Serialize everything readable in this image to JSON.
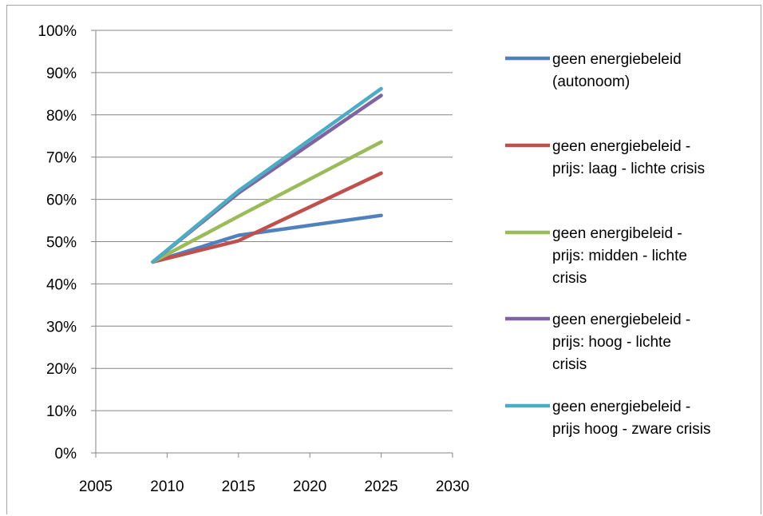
{
  "chart_data": {
    "type": "line",
    "title": "",
    "xlabel": "",
    "ylabel": "",
    "xlim": [
      2005,
      2030
    ],
    "ylim": [
      0,
      100
    ],
    "x_ticks": [
      "2005",
      "2010",
      "2015",
      "2020",
      "2025",
      "2030"
    ],
    "y_ticks": [
      "0%",
      "10%",
      "20%",
      "30%",
      "40%",
      "50%",
      "60%",
      "70%",
      "80%",
      "90%",
      "100%"
    ],
    "grid": "horizontal",
    "legend_position": "right",
    "series": [
      {
        "name": "geen energiebeleid (autonoom)",
        "legend_lines": [
          "geen energiebeleid",
          "(autonoom)"
        ],
        "color": "#4f81bd",
        "x": [
          2009,
          2015,
          2025
        ],
        "y": [
          45.2,
          51.5,
          56.2
        ]
      },
      {
        "name": "geen energiebeleid - prijs: laag - lichte crisis",
        "legend_lines": [
          "geen energiebeleid -",
          "prijs: laag - lichte crisis"
        ],
        "color": "#c0504d",
        "x": [
          2009,
          2015,
          2025
        ],
        "y": [
          45.2,
          50.2,
          66.2
        ]
      },
      {
        "name": "geen energibeleid - prijs: midden - lichte crisis",
        "legend_lines": [
          "geen energibeleid -",
          "prijs: midden - lichte",
          "crisis"
        ],
        "color": "#9bbb59",
        "x": [
          2009,
          2015,
          2025
        ],
        "y": [
          45.2,
          56.0,
          73.6
        ]
      },
      {
        "name": "geen energiebeleid - prijs: hoog - lichte crisis",
        "legend_lines": [
          "geen energiebeleid -",
          "prijs:  hoog - lichte",
          "crisis"
        ],
        "color": "#8064a2",
        "x": [
          2009,
          2015,
          2025
        ],
        "y": [
          45.2,
          61.5,
          84.6
        ]
      },
      {
        "name": "geen energiebeleid - prijs hoog - zware crisis",
        "legend_lines": [
          "geen energiebeleid -",
          "prijs hoog - zware crisis"
        ],
        "color": "#4bacc6",
        "x": [
          2009,
          2015,
          2025
        ],
        "y": [
          45.2,
          62.0,
          86.2
        ]
      }
    ]
  }
}
